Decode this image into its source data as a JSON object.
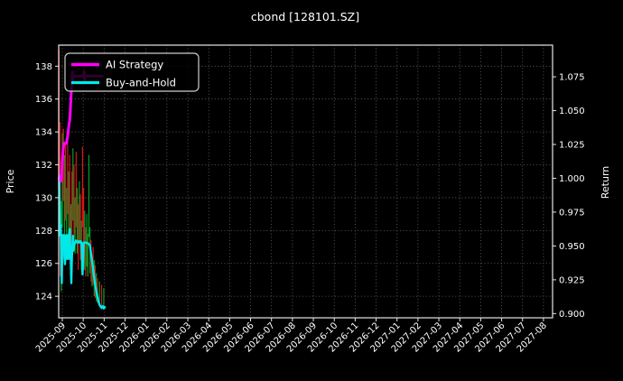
{
  "title": "cbond [128101.SZ]",
  "axes": {
    "left_label": "Price",
    "right_label": "Return",
    "x_tick_labels": [
      "2025-09",
      "2025-10",
      "2025-11",
      "2025-12",
      "2026-01",
      "2026-02",
      "2026-03",
      "2026-04",
      "2026-05",
      "2026-06",
      "2026-07",
      "2026-08",
      "2026-09",
      "2026-10",
      "2026-11",
      "2026-12",
      "2027-01",
      "2027-02",
      "2027-03",
      "2027-04",
      "2027-05",
      "2027-06",
      "2027-07",
      "2027-08"
    ],
    "price_ticks": [
      138,
      136,
      134,
      132,
      130,
      128,
      126,
      124
    ],
    "return_ticks": [
      1.075,
      1.05,
      1.025,
      1.0,
      0.975,
      0.95,
      0.925,
      0.9
    ]
  },
  "legend": {
    "items": [
      {
        "label": "AI Strategy",
        "color": "#ff00ff"
      },
      {
        "label": "Buy-and-Hold",
        "color": "#00e8e8"
      }
    ]
  },
  "colors": {
    "background": "#000000",
    "spine": "#e6e6e6",
    "grid": "#6a6a6a",
    "text": "#ffffff",
    "ai_strategy": "#ff00ff",
    "buy_and_hold": "#00e8e8",
    "bar_up": "#00b02a",
    "bar_down": "#f01818"
  },
  "chart_data": {
    "type": "line",
    "title": "cbond [128101.SZ]",
    "ylabel_left": "Price",
    "ylabel_right": "Return",
    "x_axis_note": "trading days starting late Aug 2025; axis labeled monthly 2025-09 through 2027-08",
    "left_ylim": [
      122.7,
      139.3
    ],
    "right_ylim": [
      0.897,
      1.098
    ],
    "grid": "dotted",
    "legend_position": "upper-left",
    "series": [
      {
        "name": "AI Strategy",
        "axis": "return",
        "color": "#ff00ff",
        "points": [
          [
            0,
            1.0
          ],
          [
            0.5,
            1.002
          ],
          [
            1,
            0.9985
          ],
          [
            1.5,
            1.001
          ],
          [
            2,
            0.998
          ],
          [
            2.5,
            1.005
          ],
          [
            3,
            1.013
          ],
          [
            3.5,
            1.018
          ],
          [
            4,
            1.0225
          ],
          [
            4.5,
            1.0255
          ],
          [
            5,
            1.026
          ],
          [
            6,
            1.0255
          ],
          [
            7,
            1.026
          ],
          [
            8,
            1.031
          ],
          [
            9,
            1.038
          ],
          [
            10,
            1.0435
          ],
          [
            10.5,
            1.05
          ],
          [
            11,
            1.057
          ],
          [
            11.5,
            1.0645
          ],
          [
            12,
            1.071
          ],
          [
            12.5,
            1.0785
          ],
          [
            13,
            1.0735
          ],
          [
            13.5,
            1.0755
          ],
          [
            15,
            1.0755
          ],
          [
            23,
            1.0755
          ],
          [
            23.5,
            1.0792
          ],
          [
            24,
            1.0715
          ],
          [
            24.5,
            1.0755
          ],
          [
            40.5,
            1.0755
          ]
        ]
      },
      {
        "name": "Buy-and-Hold",
        "axis": "return",
        "color": "#00e8e8",
        "points": [
          [
            0,
            1.0
          ],
          [
            0.5,
            0.978
          ],
          [
            1,
            0.9575
          ],
          [
            1.5,
            0.9655
          ],
          [
            2,
            0.94
          ],
          [
            2.5,
            0.9225
          ],
          [
            3,
            0.948
          ],
          [
            3.5,
            0.958
          ],
          [
            4,
            0.9555
          ],
          [
            4.5,
            0.958
          ],
          [
            5,
            0.9415
          ],
          [
            5.5,
            0.9365
          ],
          [
            6,
            0.9525
          ],
          [
            6.5,
            0.958
          ],
          [
            7,
            0.9465
          ],
          [
            7.5,
            0.9405
          ],
          [
            8,
            0.958
          ],
          [
            8.5,
            0.9485
          ],
          [
            9,
            0.9405
          ],
          [
            9.5,
            0.96
          ],
          [
            10,
            0.9625
          ],
          [
            10.5,
            0.9465
          ],
          [
            11,
            0.9405
          ],
          [
            11.5,
            0.9225
          ],
          [
            12,
            0.9405
          ],
          [
            12.5,
            0.9495
          ],
          [
            13,
            0.9575
          ],
          [
            13.5,
            0.9465
          ],
          [
            14,
            0.9505
          ],
          [
            15,
            0.9525
          ],
          [
            16,
            0.954
          ],
          [
            17,
            0.9525
          ],
          [
            18,
            0.9535
          ],
          [
            19,
            0.9525
          ],
          [
            20,
            0.9535
          ],
          [
            21,
            0.9525
          ],
          [
            21.5,
            0.9405
          ],
          [
            22,
            0.929
          ],
          [
            22.5,
            0.9375
          ],
          [
            23,
            0.9525
          ],
          [
            25,
            0.9525
          ],
          [
            27,
            0.952
          ],
          [
            29,
            0.9505
          ],
          [
            30,
            0.9445
          ],
          [
            31,
            0.9385
          ],
          [
            32,
            0.9325
          ],
          [
            33,
            0.9265
          ],
          [
            34,
            0.921
          ],
          [
            35,
            0.9165
          ],
          [
            36,
            0.9125
          ],
          [
            37,
            0.909
          ],
          [
            38,
            0.9065
          ],
          [
            39,
            0.9052
          ],
          [
            40,
            0.9042
          ],
          [
            41,
            0.9055
          ],
          [
            42,
            0.9038
          ],
          [
            43,
            0.9048
          ]
        ]
      }
    ],
    "price_bars": {
      "axis": "price",
      "format": "[day, up_or_down, high, low]",
      "bars": [
        [
          0,
          "r",
          139.0,
          128.0
        ],
        [
          1,
          "r",
          134.6,
          125.2
        ],
        [
          2,
          "g",
          129.8,
          124.3
        ],
        [
          3,
          "g",
          133.9,
          128.2
        ],
        [
          4,
          "r",
          134.2,
          129.8
        ],
        [
          5,
          "g",
          132.6,
          126.4
        ],
        [
          6,
          "r",
          133.2,
          128.6
        ],
        [
          7,
          "g",
          130.6,
          126.2
        ],
        [
          8,
          "r",
          133.8,
          129.0
        ],
        [
          9,
          "g",
          131.6,
          127.6
        ],
        [
          10,
          "r",
          132.6,
          127.2
        ],
        [
          11,
          "g",
          129.6,
          125.2
        ],
        [
          12,
          "r",
          131.6,
          126.2
        ],
        [
          13,
          "g",
          133.0,
          128.6
        ],
        [
          14,
          "r",
          132.0,
          127.6
        ],
        [
          15,
          "g",
          130.0,
          126.6
        ],
        [
          16,
          "r",
          132.8,
          128.2
        ],
        [
          17,
          "g",
          130.6,
          126.6
        ],
        [
          18,
          "r",
          129.6,
          125.6
        ],
        [
          19,
          "g",
          131.0,
          127.2
        ],
        [
          20,
          "r",
          130.2,
          126.2
        ],
        [
          21,
          "g",
          128.6,
          125.6
        ],
        [
          22,
          "r",
          133.1,
          128.2
        ],
        [
          23,
          "r",
          130.6,
          126.9
        ],
        [
          24,
          "g",
          129.2,
          125.6
        ],
        [
          25,
          "r",
          128.2,
          125.2
        ],
        [
          26,
          "g",
          129.0,
          125.8
        ],
        [
          27,
          "g",
          127.8,
          125.2
        ],
        [
          28,
          "g",
          132.6,
          127.6
        ],
        [
          29,
          "g",
          128.2,
          125.4
        ],
        [
          30,
          "r",
          127.4,
          124.9
        ],
        [
          31,
          "g",
          126.4,
          124.6
        ],
        [
          32,
          "r",
          127.0,
          124.7
        ],
        [
          33,
          "g",
          126.2,
          124.0
        ],
        [
          34,
          "r",
          125.9,
          123.9
        ],
        [
          35,
          "g",
          125.4,
          123.7
        ],
        [
          36,
          "r",
          125.1,
          123.6
        ],
        [
          38,
          "g",
          124.9,
          123.5
        ],
        [
          40,
          "r",
          124.7,
          123.4
        ],
        [
          42,
          "g",
          124.5,
          123.3
        ]
      ]
    }
  }
}
